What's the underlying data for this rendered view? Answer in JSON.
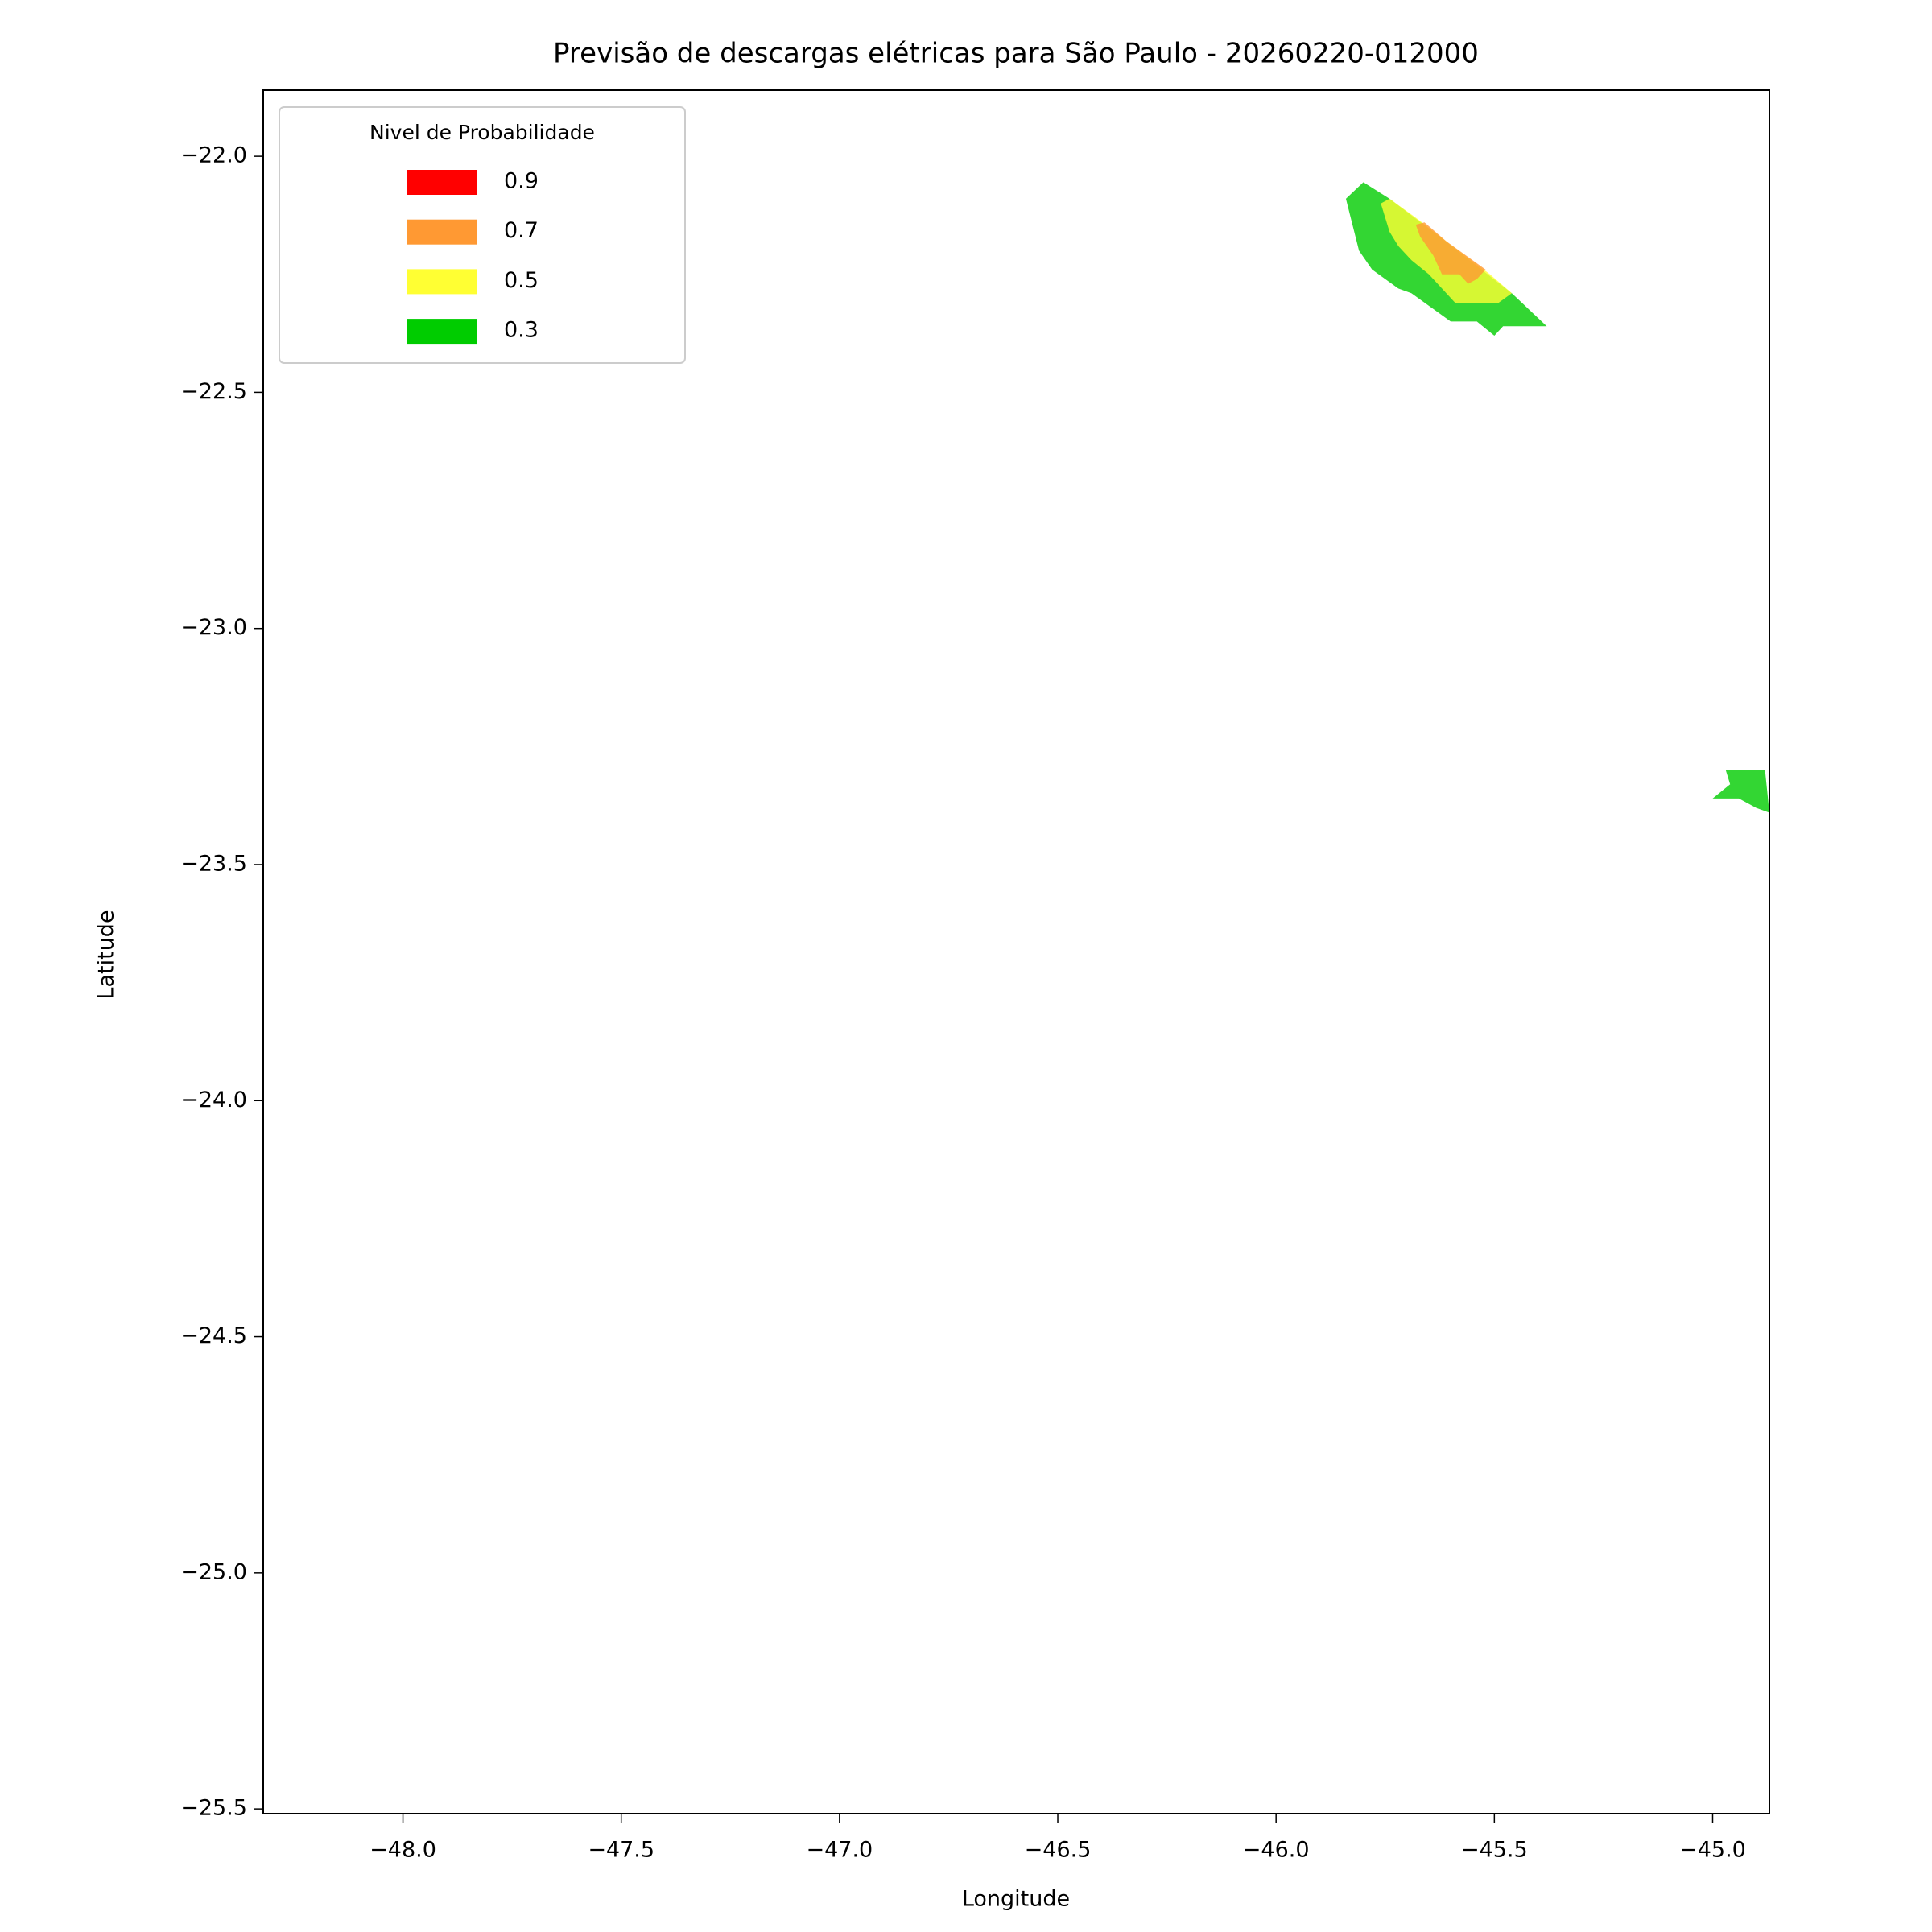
{
  "chart_data": {
    "type": "contour",
    "title": "Previsão de descargas elétricas para São Paulo - 20260220-012000",
    "xlabel": "Longitude",
    "ylabel": "Latitude",
    "legend_title": "Nivel de Probabilidade",
    "legend_position": "upper left",
    "alpha": 0.8,
    "xlim": [
      -48.32,
      -44.87
    ],
    "ylim": [
      -25.51,
      -21.86
    ],
    "xticks": [
      {
        "value": -48.0,
        "label": "−48.0"
      },
      {
        "value": -47.5,
        "label": "−47.5"
      },
      {
        "value": -47.0,
        "label": "−47.0"
      },
      {
        "value": -46.5,
        "label": "−46.5"
      },
      {
        "value": -46.0,
        "label": "−46.0"
      },
      {
        "value": -45.5,
        "label": "−45.5"
      },
      {
        "value": -45.0,
        "label": "−45.0"
      }
    ],
    "yticks": [
      {
        "value": -22.0,
        "label": "−22.0"
      },
      {
        "value": -22.5,
        "label": "−22.5"
      },
      {
        "value": -23.0,
        "label": "−23.0"
      },
      {
        "value": -23.5,
        "label": "−23.5"
      },
      {
        "value": -24.0,
        "label": "−24.0"
      },
      {
        "value": -24.5,
        "label": "−24.5"
      },
      {
        "value": -25.0,
        "label": "−25.0"
      },
      {
        "value": -25.5,
        "label": "−25.5"
      }
    ],
    "series": [
      {
        "name": "0.9",
        "color": "#ff0000",
        "polygons": []
      },
      {
        "name": "0.7",
        "color": "#ff9933",
        "polygons": [
          {
            "x": [
              -45.68,
              -45.66,
              -45.61,
              -45.52,
              -45.54,
              -45.56,
              -45.58,
              -45.62,
              -45.64,
              -45.67
            ],
            "y": [
              -22.145,
              -22.14,
              -22.18,
              -22.24,
              -22.26,
              -22.27,
              -22.25,
              -22.25,
              -22.21,
              -22.17
            ]
          }
        ]
      },
      {
        "name": "0.5",
        "color": "#ffff33",
        "polygons": [
          {
            "x": [
              -45.76,
              -45.74,
              -45.68,
              -45.61,
              -45.51,
              -45.46,
              -45.49,
              -45.59,
              -45.62,
              -45.65,
              -45.69,
              -45.72,
              -45.74
            ],
            "y": [
              -22.1,
              -22.09,
              -22.13,
              -22.18,
              -22.25,
              -22.29,
              -22.31,
              -22.31,
              -22.28,
              -22.25,
              -22.22,
              -22.19,
              -22.16
            ]
          }
        ]
      },
      {
        "name": "0.3",
        "color": "#00cc00",
        "polygons": [
          {
            "x": [
              -45.84,
              -45.8,
              -45.74,
              -45.64,
              -45.46,
              -45.38,
              -45.48,
              -45.5,
              -45.54,
              -45.6,
              -45.69,
              -45.72,
              -45.78,
              -45.81
            ],
            "y": [
              -22.09,
              -22.055,
              -22.09,
              -22.16,
              -22.29,
              -22.36,
              -22.36,
              -22.38,
              -22.35,
              -22.35,
              -22.29,
              -22.28,
              -22.24,
              -22.2
            ]
          },
          {
            "x": [
              -45.0,
              -44.96,
              -44.97,
              -44.88,
              -44.87,
              -44.9,
              -44.94
            ],
            "y": [
              -23.36,
              -23.33,
              -23.3,
              -23.3,
              -23.39,
              -23.38,
              -23.36
            ]
          }
        ]
      }
    ]
  }
}
